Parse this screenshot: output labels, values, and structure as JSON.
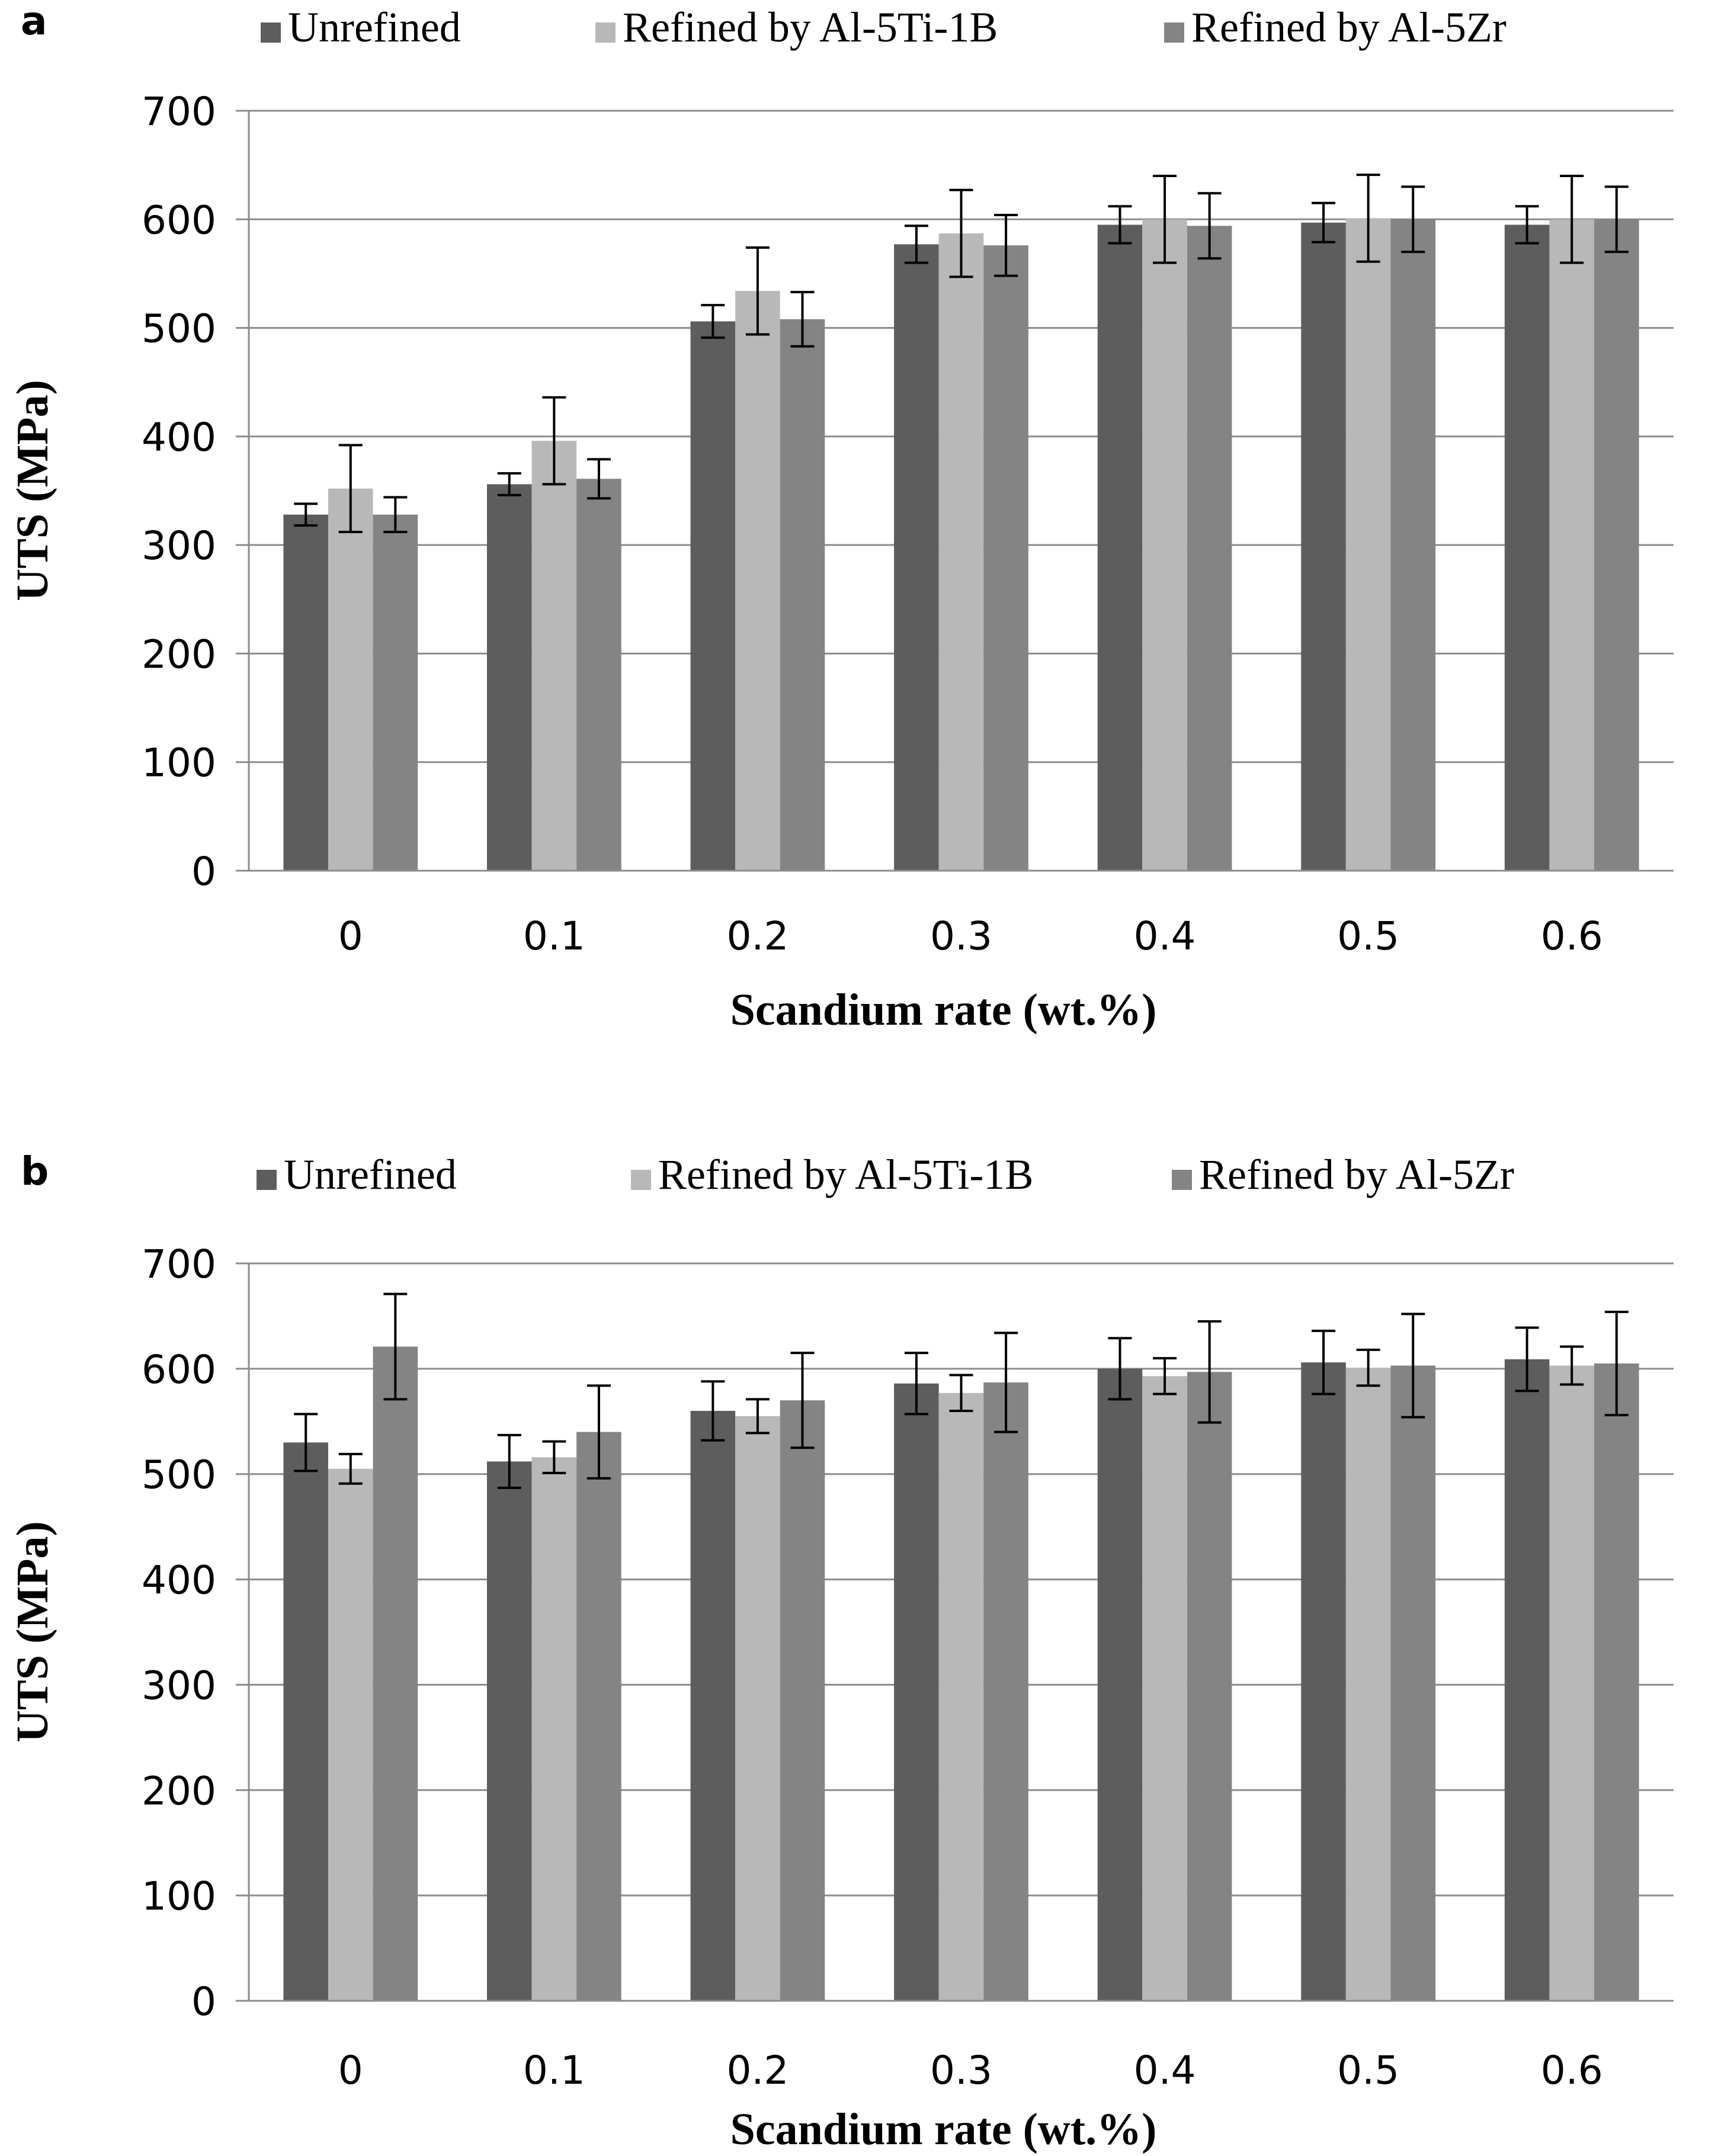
{
  "colors": {
    "unrefined": "#5d5d5d",
    "ti": "#b8b8b8",
    "zr": "#848484",
    "grid": "#8c8c8c",
    "error_bar": "#000000"
  },
  "chart_data": [
    {
      "type": "bar",
      "panel_label": "a",
      "xlabel": "Scandium rate (wt.%)",
      "ylabel": "UTS (MPa)",
      "ylim": [
        0,
        700
      ],
      "yticks": [
        "0",
        "100",
        "200",
        "300",
        "400",
        "500",
        "600",
        "700"
      ],
      "grid": true,
      "legend_position": "top",
      "categories": [
        "0",
        "0.1",
        "0.2",
        "0.3",
        "0.4",
        "0.5",
        "0.6"
      ],
      "series": [
        {
          "name": "Unrefined",
          "color_key": "unrefined",
          "values": [
            328,
            356,
            506,
            577,
            595,
            597,
            595
          ],
          "errors": [
            10,
            10,
            15,
            17,
            17,
            18,
            17
          ]
        },
        {
          "name": "Refined by Al-5Ti-1B",
          "color_key": "ti",
          "values": [
            352,
            396,
            534,
            587,
            600,
            601,
            600
          ],
          "errors": [
            40,
            40,
            40,
            40,
            40,
            40,
            40
          ]
        },
        {
          "name": "Refined by Al-5Zr",
          "color_key": "zr",
          "values": [
            328,
            361,
            508,
            576,
            594,
            600,
            600
          ],
          "errors": [
            16,
            18,
            25,
            28,
            30,
            30,
            30
          ]
        }
      ]
    },
    {
      "type": "bar",
      "panel_label": "b",
      "xlabel": "Scandium rate (wt.%)",
      "ylabel": "UTS (MPa)",
      "ylim": [
        0,
        700
      ],
      "yticks": [
        "0",
        "100",
        "200",
        "300",
        "400",
        "500",
        "600",
        "700"
      ],
      "grid": true,
      "legend_position": "top",
      "categories": [
        "0",
        "0.1",
        "0.2",
        "0.3",
        "0.4",
        "0.5",
        "0.6"
      ],
      "series": [
        {
          "name": "Unrefined",
          "color_key": "unrefined",
          "values": [
            530,
            512,
            560,
            586,
            600,
            606,
            609
          ],
          "errors": [
            27,
            25,
            28,
            29,
            29,
            30,
            30
          ]
        },
        {
          "name": "Refined by Al-5Ti-1B",
          "color_key": "ti",
          "values": [
            505,
            516,
            555,
            577,
            593,
            601,
            603
          ],
          "errors": [
            14,
            15,
            16,
            17,
            17,
            17,
            18
          ]
        },
        {
          "name": "Refined by Al-5Zr",
          "color_key": "zr",
          "values": [
            621,
            540,
            570,
            587,
            597,
            603,
            605
          ],
          "errors": [
            50,
            44,
            45,
            47,
            48,
            49,
            49
          ]
        }
      ]
    }
  ]
}
